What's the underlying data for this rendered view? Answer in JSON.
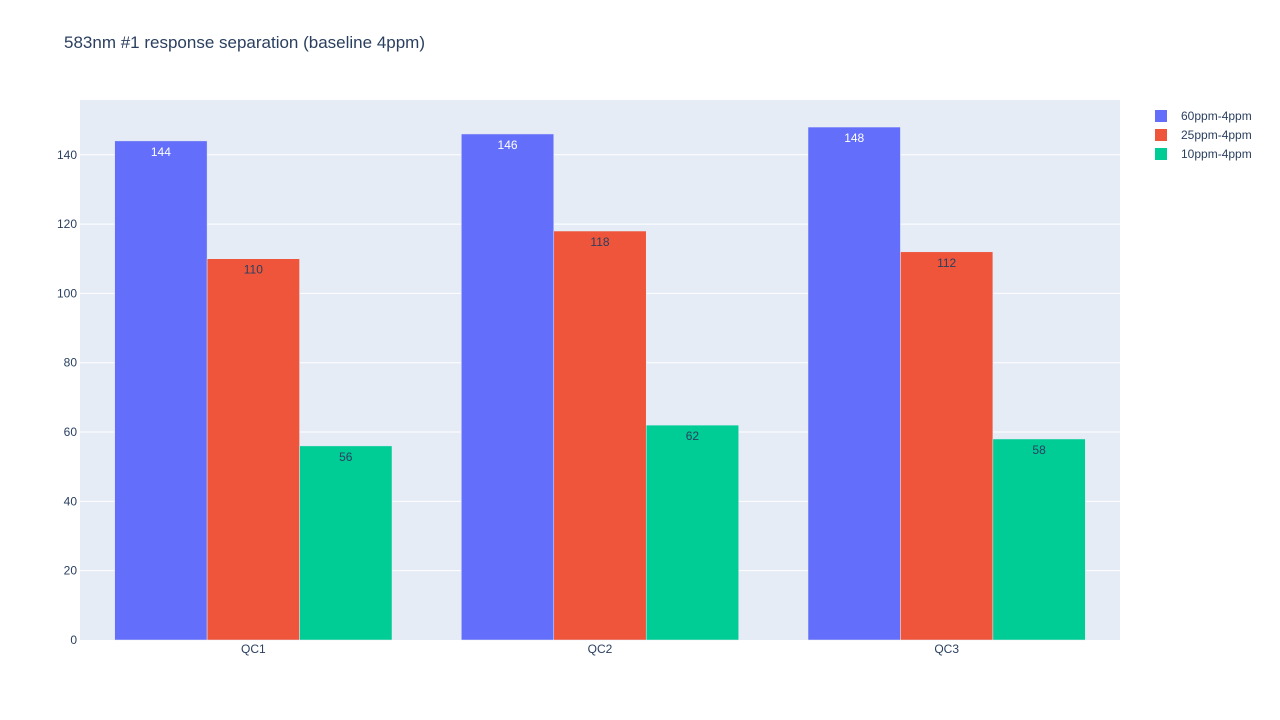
{
  "chart_data": {
    "type": "bar",
    "title": "583nm #1 response separation (baseline 4ppm)",
    "xlabel": "",
    "ylabel": "",
    "categories": [
      "QC1",
      "QC2",
      "QC3"
    ],
    "series": [
      {
        "name": "60ppm-4ppm",
        "values": [
          144,
          146,
          148
        ],
        "color": "#636efa",
        "label_color": "#ffffff"
      },
      {
        "name": "25ppm-4ppm",
        "values": [
          110,
          118,
          112
        ],
        "color": "#ef553b",
        "label_color": "#2a3f5f"
      },
      {
        "name": "10ppm-4ppm",
        "values": [
          56,
          62,
          58
        ],
        "color": "#00cc96",
        "label_color": "#2a3f5f"
      }
    ],
    "ylim": [
      0,
      155.8
    ],
    "yticks": [
      0,
      20,
      40,
      60,
      80,
      100,
      120,
      140
    ],
    "grid": true,
    "legend_position": "top-right",
    "plot_background": "#e5ecf6"
  }
}
